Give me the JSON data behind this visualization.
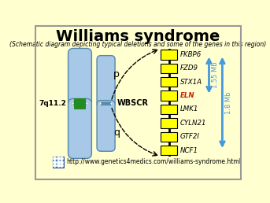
{
  "title": "Williams syndrome",
  "subtitle": "(Schematic diagram depicting typical deletions and some of the genes in this region)",
  "bg_color": "#FFFFD0",
  "border_color": "#999999",
  "chr_label": "7q11.2",
  "chr_band_color": "#228B22",
  "chr_body_color": "#A8C8E8",
  "chr_outline_color": "#6699BB",
  "wbscr_label": "WBSCR",
  "p_label": "p",
  "q_label": "q",
  "genes": [
    "FKBP6",
    "FZD9",
    "STX1A",
    "ELN",
    "LMK1",
    "CYLN21",
    "GTF2I",
    "NCF1"
  ],
  "gene_highlight": "ELN",
  "gene_highlight_color": "#CC2200",
  "gene_color": "#FFFF00",
  "gene_border_color": "#000000",
  "arrow1_label": "1.55 Mb",
  "arrow2_label": "1.8 Mb",
  "arrow_color": "#4499DD",
  "url": "http://www.genetics4medics.com/williams-syndrome.html",
  "url_icon_color": "#3377CC",
  "dashed_color": "#000000"
}
